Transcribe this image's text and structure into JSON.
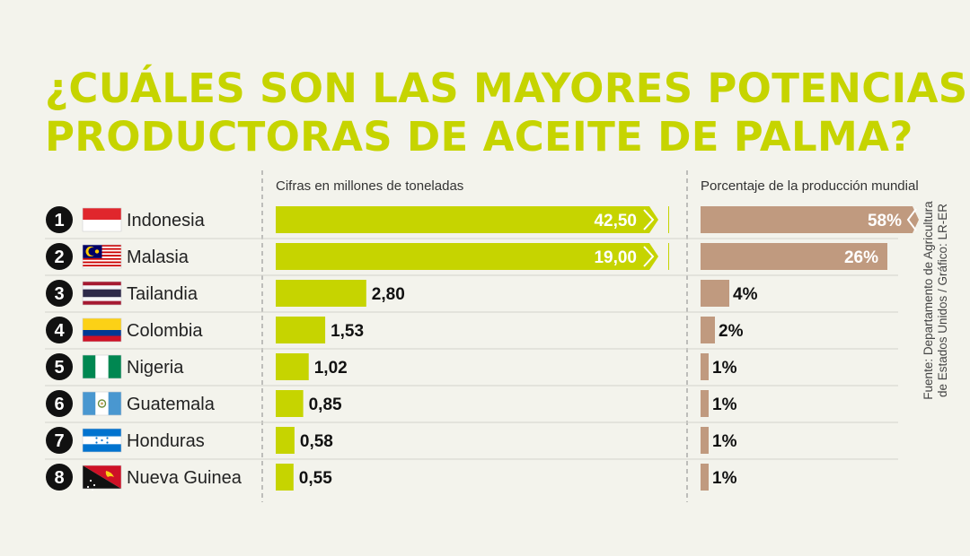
{
  "title_lines": [
    "¿CUÁLES SON LAS MAYORES POTENCIAS",
    "PRODUCTORAS DE ACEITE DE PALMA?"
  ],
  "source_lines": [
    "Fuente: Departamento de Agricultura",
    "de Estados Unidos / Gráfico: LR-ER"
  ],
  "colors": {
    "title": "#c6d400",
    "bar_volume": "#c6d400",
    "bar_share": "#c09a7f",
    "background": "#f3f3ec"
  },
  "chart_data": {
    "type": "bar",
    "orientation": "horizontal",
    "value_header": "Cifras en millones de toneladas",
    "share_header": "Porcentaje de la producción mundial",
    "rows": [
      {
        "rank": "1",
        "country": "Indonesia",
        "flag": "indonesia-flag",
        "value": 42.5,
        "value_label": "42,50",
        "share": 58,
        "share_label": "58%",
        "truncated": true
      },
      {
        "rank": "2",
        "country": "Malasia",
        "flag": "malaysia-flag",
        "value": 19.0,
        "value_label": "19,00",
        "share": 26,
        "share_label": "26%",
        "truncated": true
      },
      {
        "rank": "3",
        "country": "Tailandia",
        "flag": "thailand-flag",
        "value": 2.8,
        "value_label": "2,80",
        "share": 4,
        "share_label": "4%",
        "truncated": false
      },
      {
        "rank": "4",
        "country": "Colombia",
        "flag": "colombia-flag",
        "value": 1.53,
        "value_label": "1,53",
        "share": 2,
        "share_label": "2%",
        "truncated": false
      },
      {
        "rank": "5",
        "country": "Nigeria",
        "flag": "nigeria-flag",
        "value": 1.02,
        "value_label": "1,02",
        "share": 1,
        "share_label": "1%",
        "truncated": false
      },
      {
        "rank": "6",
        "country": "Guatemala",
        "flag": "guatemala-flag",
        "value": 0.85,
        "value_label": "0,85",
        "share": 1,
        "share_label": "1%",
        "truncated": false
      },
      {
        "rank": "7",
        "country": "Honduras",
        "flag": "honduras-flag",
        "value": 0.58,
        "value_label": "0,58",
        "share": 1,
        "share_label": "1%",
        "truncated": false
      },
      {
        "rank": "8",
        "country": "Nueva Guinea",
        "flag": "papua-new-guinea-flag",
        "value": 0.55,
        "value_label": "0,55",
        "share": 1,
        "share_label": "1%",
        "truncated": false
      }
    ]
  }
}
